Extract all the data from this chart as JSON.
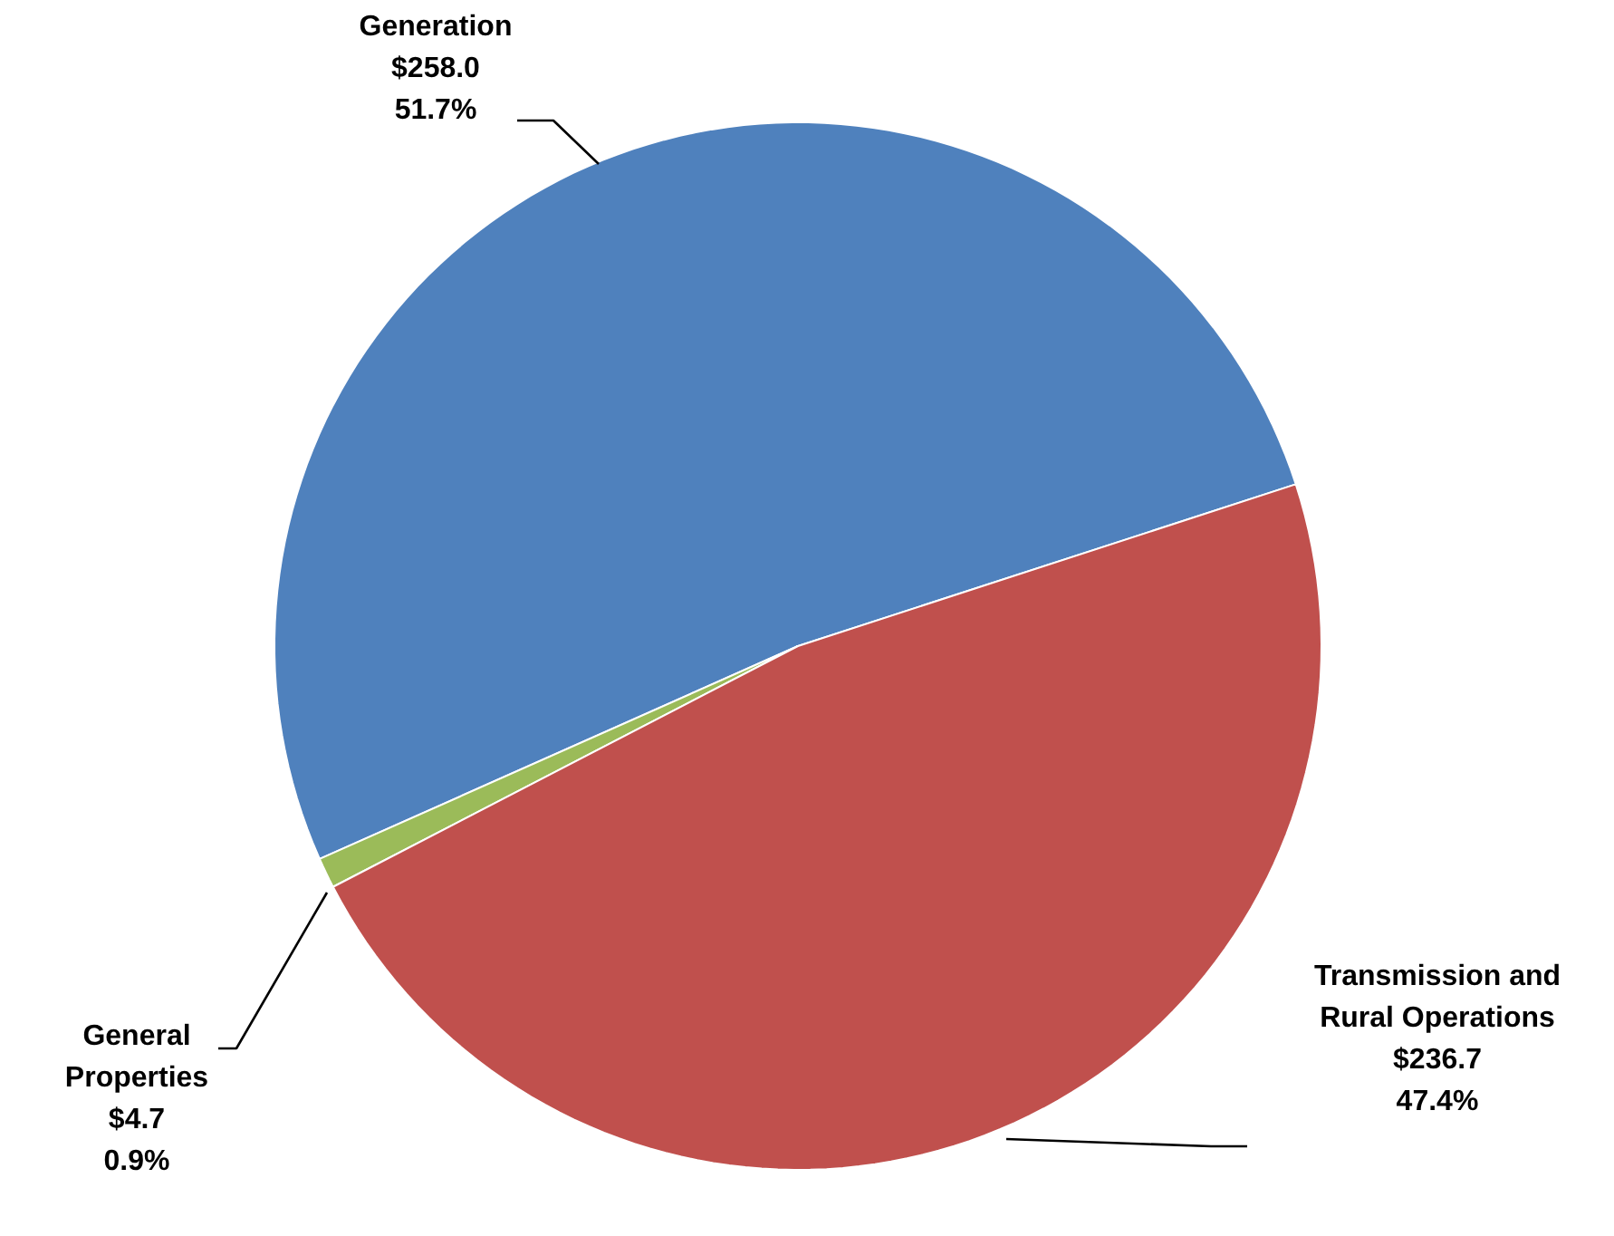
{
  "chart_data": {
    "type": "pie",
    "categories": [
      "Generation",
      "General Properties",
      "Transmission and Rural Operations"
    ],
    "values": [
      258.0,
      4.7,
      236.7
    ],
    "colors": [
      "#4f81bd",
      "#9bbb59",
      "#c0504d"
    ],
    "value_labels": [
      "$258.0\n51.7%",
      "$4.7\n0.9%",
      "$236.7\n47.4%"
    ]
  }
}
